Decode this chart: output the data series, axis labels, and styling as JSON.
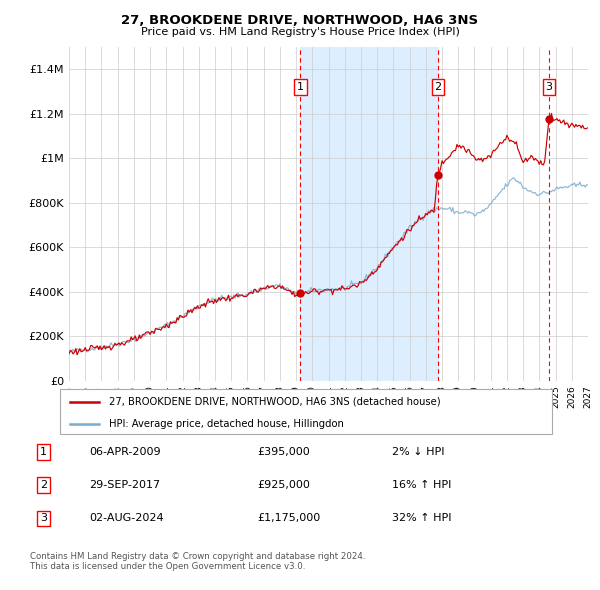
{
  "title": "27, BROOKDENE DRIVE, NORTHWOOD, HA6 3NS",
  "subtitle": "Price paid vs. HM Land Registry's House Price Index (HPI)",
  "ylim": [
    0,
    1500000
  ],
  "yticks": [
    0,
    200000,
    400000,
    600000,
    800000,
    1000000,
    1200000,
    1400000
  ],
  "ytick_labels": [
    "£0",
    "£200K",
    "£400K",
    "£600K",
    "£800K",
    "£1M",
    "£1.2M",
    "£1.4M"
  ],
  "sales": [
    {
      "year_dec": 2009.264,
      "price": 395000,
      "label": "1"
    },
    {
      "year_dec": 2017.745,
      "price": 925000,
      "label": "2"
    },
    {
      "year_dec": 2024.585,
      "price": 1175000,
      "label": "3"
    }
  ],
  "legend_line1": "27, BROOKDENE DRIVE, NORTHWOOD, HA6 3NS (detached house)",
  "legend_line2": "HPI: Average price, detached house, Hillingdon",
  "table_rows": [
    {
      "num": "1",
      "date": "06-APR-2009",
      "price": "£395,000",
      "change": "2% ↓ HPI"
    },
    {
      "num": "2",
      "date": "29-SEP-2017",
      "price": "£925,000",
      "change": "16% ↑ HPI"
    },
    {
      "num": "3",
      "date": "02-AUG-2024",
      "price": "£1,175,000",
      "change": "32% ↑ HPI"
    }
  ],
  "footer": "Contains HM Land Registry data © Crown copyright and database right 2024.\nThis data is licensed under the Open Government Licence v3.0.",
  "line_color_red": "#cc0000",
  "line_color_blue": "#7aaacc",
  "shaded_region_color": "#ddeeff",
  "bg_color": "#ffffff",
  "grid_color": "#cccccc",
  "x_start_year": 1995,
  "x_end_year": 2027
}
